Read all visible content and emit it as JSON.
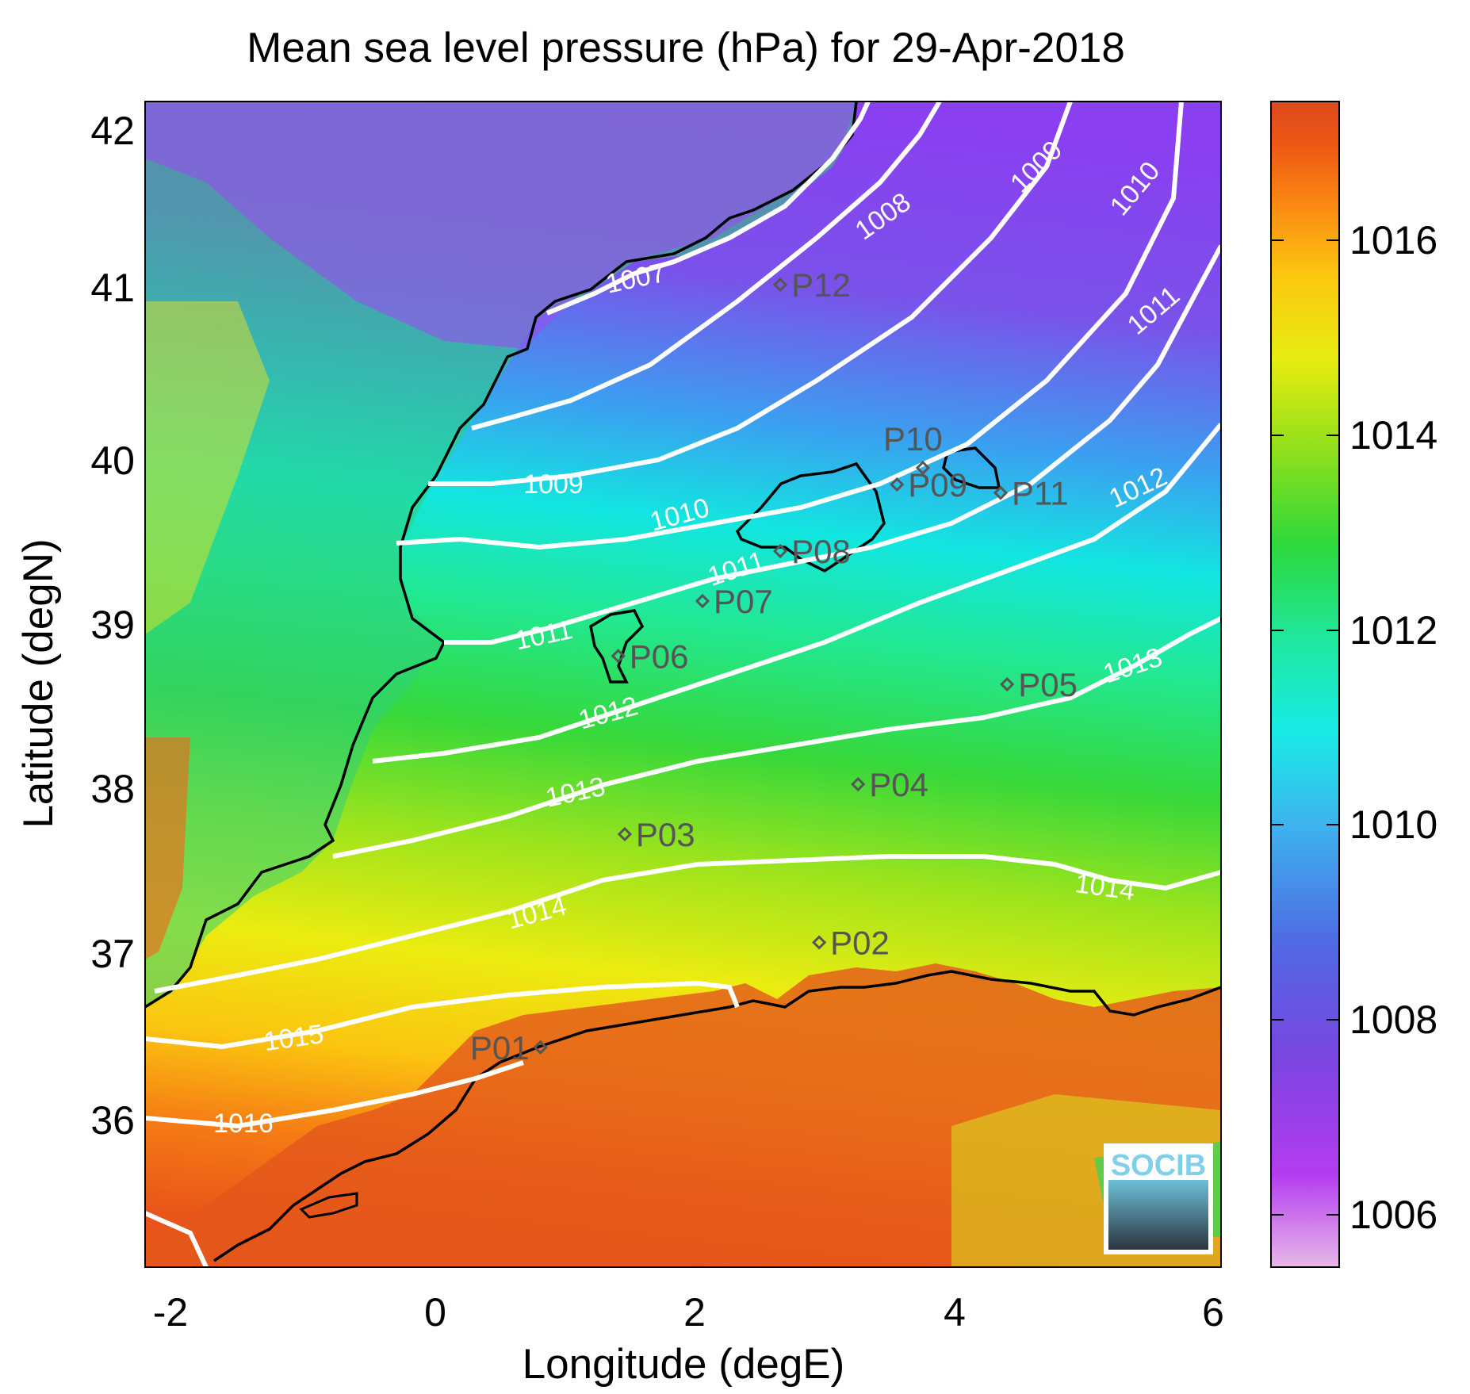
{
  "title": "Mean sea level pressure (hPa) for 29-Apr-2018",
  "xlabel": "Longitude (degE)",
  "ylabel": "Latitude (degN)",
  "x_ticks": [
    "-2",
    "0",
    "2",
    "4",
    "6"
  ],
  "y_ticks": [
    "42",
    "41",
    "40",
    "39",
    "38",
    "37",
    "36"
  ],
  "colorbar": {
    "ticks": [
      "1016",
      "1014",
      "1012",
      "1010",
      "1008",
      "1006"
    ],
    "range": [
      1005.5,
      1017.2
    ],
    "colormap": [
      "#e7b8e8",
      "#b43cf0",
      "#7a45e0",
      "#4f6be4",
      "#3db4ee",
      "#18ece6",
      "#1fe89c",
      "#2ed83b",
      "#8ee01c",
      "#e8ec10",
      "#fbc810",
      "#fb8a12",
      "#ef5a14",
      "#dc4a1e"
    ]
  },
  "map": {
    "lon_range": [
      -2.2,
      6.1
    ],
    "lat_range": [
      35.2,
      42.2
    ],
    "land_color_note": "topography shading",
    "coastline_color": "#000000",
    "contour_color": "#ffffff",
    "contour_labels": [
      "1007",
      "1008",
      "1009",
      "1010",
      "1009",
      "1010",
      "1011",
      "1011",
      "1011",
      "1012",
      "1012",
      "1013",
      "1013",
      "1014",
      "1014",
      "1015",
      "1016"
    ],
    "stations": [
      {
        "label": "P01",
        "lon": 0.85,
        "lat": 36.52
      },
      {
        "label": "P02",
        "lon": 3.0,
        "lat": 37.15
      },
      {
        "label": "P03",
        "lon": 1.5,
        "lat": 37.8
      },
      {
        "label": "P04",
        "lon": 3.3,
        "lat": 38.1
      },
      {
        "label": "P05",
        "lon": 4.45,
        "lat": 38.7
      },
      {
        "label": "P06",
        "lon": 1.45,
        "lat": 38.87
      },
      {
        "label": "P07",
        "lon": 2.1,
        "lat": 39.2
      },
      {
        "label": "P08",
        "lon": 2.7,
        "lat": 39.5
      },
      {
        "label": "P09",
        "lon": 3.6,
        "lat": 39.9
      },
      {
        "label": "P10",
        "lon": 3.8,
        "lat": 40.0
      },
      {
        "label": "P11",
        "lon": 4.4,
        "lat": 39.85
      },
      {
        "label": "P12",
        "lon": 2.7,
        "lat": 41.1
      }
    ]
  },
  "logo": {
    "text": "SOCIB"
  }
}
